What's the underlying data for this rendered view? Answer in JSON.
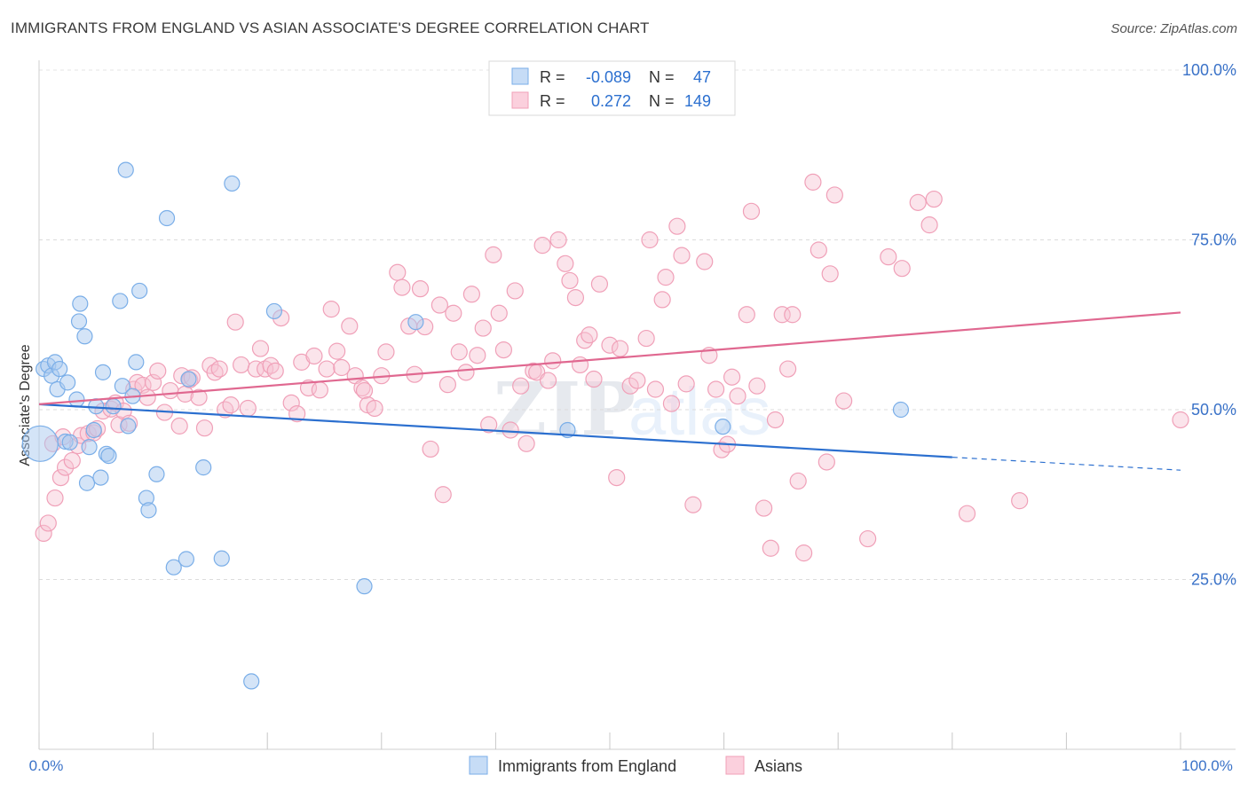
{
  "header": {
    "title": "IMMIGRANTS FROM ENGLAND VS ASIAN ASSOCIATE'S DEGREE CORRELATION CHART",
    "source": "Source: ZipAtlas.com"
  },
  "stats": {
    "row1": {
      "r_label": "R =",
      "r_value": "-0.089",
      "n_label": "N =",
      "n_value": "47"
    },
    "row2": {
      "r_label": "R =",
      "r_value": "0.272",
      "n_label": "N =",
      "n_value": "149"
    }
  },
  "watermark": {
    "zip": "ZIP",
    "atlas": "atlas"
  },
  "colors": {
    "blue": "#7aaee8",
    "blue_line": "#2b6fcf",
    "pink": "#f0a0b8",
    "pink_line": "#e06890",
    "tick_text": "#3a72c8"
  },
  "chart_data": {
    "type": "scatter",
    "title": "IMMIGRANTS FROM ENGLAND VS ASIAN ASSOCIATE'S DEGREE CORRELATION CHART",
    "xlabel": "",
    "ylabel": "Associate's Degree",
    "xlim": [
      0,
      100
    ],
    "ylim": [
      0,
      100
    ],
    "x_tick_labels": [
      "0.0%",
      "100.0%"
    ],
    "y_tick_labels": [
      "25.0%",
      "50.0%",
      "75.0%",
      "100.0%"
    ],
    "y_ticks": [
      25,
      50,
      75,
      100
    ],
    "grid": true,
    "legend_position": "bottom",
    "series": [
      {
        "name": "Immigrants from England",
        "color": "#7aaee8",
        "r": -0.089,
        "n": 47,
        "trend": {
          "x": [
            0,
            80
          ],
          "y": [
            50.8,
            43.0
          ],
          "dashed_to": [
            100,
            41.1
          ]
        },
        "points": [
          [
            0.1,
            45.0
          ],
          [
            0.4,
            56.0
          ],
          [
            0.8,
            56.5
          ],
          [
            1.1,
            55.0
          ],
          [
            1.4,
            57.0
          ],
          [
            1.6,
            53.0
          ],
          [
            1.8,
            56.0
          ],
          [
            2.3,
            45.3
          ],
          [
            2.5,
            54.0
          ],
          [
            2.7,
            45.2
          ],
          [
            3.3,
            51.5
          ],
          [
            3.5,
            63.0
          ],
          [
            3.6,
            65.6
          ],
          [
            4.0,
            60.8
          ],
          [
            4.2,
            39.2
          ],
          [
            4.4,
            44.5
          ],
          [
            4.8,
            47.0
          ],
          [
            5.0,
            50.5
          ],
          [
            5.4,
            40.0
          ],
          [
            5.6,
            55.5
          ],
          [
            5.9,
            43.5
          ],
          [
            6.1,
            43.2
          ],
          [
            6.5,
            50.5
          ],
          [
            7.1,
            66.0
          ],
          [
            7.3,
            53.5
          ],
          [
            7.6,
            85.3
          ],
          [
            7.8,
            47.6
          ],
          [
            8.2,
            52.0
          ],
          [
            8.5,
            57.0
          ],
          [
            8.8,
            67.5
          ],
          [
            9.4,
            37.0
          ],
          [
            9.6,
            35.2
          ],
          [
            10.3,
            40.5
          ],
          [
            11.2,
            78.2
          ],
          [
            11.8,
            26.8
          ],
          [
            12.9,
            28.0
          ],
          [
            13.1,
            54.5
          ],
          [
            14.4,
            41.5
          ],
          [
            16.0,
            28.1
          ],
          [
            16.9,
            83.3
          ],
          [
            18.6,
            10.0
          ],
          [
            20.6,
            64.5
          ],
          [
            28.5,
            24.0
          ],
          [
            33.0,
            62.9
          ],
          [
            46.3,
            47.0
          ],
          [
            59.9,
            47.5
          ],
          [
            75.5,
            50.0
          ]
        ]
      },
      {
        "name": "Asians",
        "color": "#f0a0b8",
        "r": 0.272,
        "n": 149,
        "trend": {
          "x": [
            0,
            100
          ],
          "y": [
            50.8,
            64.3
          ]
        },
        "points": [
          [
            0.4,
            31.8
          ],
          [
            0.8,
            33.3
          ],
          [
            1.2,
            45.0
          ],
          [
            1.4,
            37.0
          ],
          [
            1.9,
            40.0
          ],
          [
            2.1,
            46.0
          ],
          [
            2.3,
            41.5
          ],
          [
            2.9,
            42.5
          ],
          [
            3.4,
            44.7
          ],
          [
            3.7,
            46.2
          ],
          [
            4.3,
            46.5
          ],
          [
            4.8,
            46.6
          ],
          [
            5.1,
            47.2
          ],
          [
            5.6,
            49.8
          ],
          [
            6.3,
            50.1
          ],
          [
            6.7,
            51.0
          ],
          [
            7.0,
            47.8
          ],
          [
            7.4,
            49.8
          ],
          [
            7.9,
            48.0
          ],
          [
            8.3,
            53.0
          ],
          [
            8.6,
            54.0
          ],
          [
            9.1,
            53.6
          ],
          [
            9.5,
            51.8
          ],
          [
            10.0,
            54.0
          ],
          [
            10.4,
            55.7
          ],
          [
            11.0,
            49.6
          ],
          [
            11.5,
            52.8
          ],
          [
            12.3,
            47.6
          ],
          [
            12.5,
            55.0
          ],
          [
            12.8,
            52.3
          ],
          [
            13.2,
            54.4
          ],
          [
            13.4,
            54.7
          ],
          [
            14.0,
            51.8
          ],
          [
            14.5,
            47.3
          ],
          [
            15.0,
            56.5
          ],
          [
            15.4,
            55.5
          ],
          [
            15.8,
            56.0
          ],
          [
            16.3,
            50.0
          ],
          [
            16.8,
            50.7
          ],
          [
            17.2,
            62.9
          ],
          [
            17.7,
            56.6
          ],
          [
            18.3,
            50.2
          ],
          [
            19.0,
            56.0
          ],
          [
            19.4,
            59.0
          ],
          [
            19.8,
            56.0
          ],
          [
            20.3,
            56.5
          ],
          [
            20.7,
            55.7
          ],
          [
            21.2,
            63.5
          ],
          [
            22.1,
            51.0
          ],
          [
            22.6,
            49.4
          ],
          [
            23.0,
            57.0
          ],
          [
            23.6,
            53.2
          ],
          [
            24.1,
            57.9
          ],
          [
            24.6,
            52.9
          ],
          [
            25.2,
            56.0
          ],
          [
            25.6,
            64.8
          ],
          [
            26.1,
            58.6
          ],
          [
            26.5,
            56.2
          ],
          [
            27.2,
            62.3
          ],
          [
            27.7,
            55.0
          ],
          [
            28.3,
            53.2
          ],
          [
            28.5,
            52.8
          ],
          [
            28.8,
            50.7
          ],
          [
            29.4,
            50.2
          ],
          [
            30.0,
            55.0
          ],
          [
            30.4,
            58.5
          ],
          [
            31.4,
            70.2
          ],
          [
            31.8,
            68.0
          ],
          [
            32.4,
            62.3
          ],
          [
            32.9,
            55.2
          ],
          [
            33.4,
            67.8
          ],
          [
            33.8,
            62.2
          ],
          [
            34.3,
            44.2
          ],
          [
            35.1,
            65.4
          ],
          [
            35.4,
            37.5
          ],
          [
            35.8,
            53.7
          ],
          [
            36.3,
            64.2
          ],
          [
            36.8,
            58.5
          ],
          [
            37.4,
            55.5
          ],
          [
            37.9,
            67.0
          ],
          [
            38.4,
            58.0
          ],
          [
            38.9,
            62.0
          ],
          [
            39.4,
            47.8
          ],
          [
            39.8,
            72.8
          ],
          [
            40.3,
            64.2
          ],
          [
            40.7,
            58.8
          ],
          [
            41.3,
            47.0
          ],
          [
            41.7,
            67.5
          ],
          [
            42.2,
            53.5
          ],
          [
            42.7,
            45.0
          ],
          [
            43.3,
            55.7
          ],
          [
            43.6,
            55.5
          ],
          [
            44.1,
            74.2
          ],
          [
            44.6,
            54.3
          ],
          [
            45.0,
            57.2
          ],
          [
            45.5,
            75.0
          ],
          [
            46.1,
            71.5
          ],
          [
            46.5,
            69.0
          ],
          [
            47.0,
            66.5
          ],
          [
            47.4,
            56.6
          ],
          [
            47.8,
            60.2
          ],
          [
            48.2,
            61.0
          ],
          [
            48.6,
            54.5
          ],
          [
            49.1,
            68.5
          ],
          [
            50.0,
            59.5
          ],
          [
            50.6,
            40.0
          ],
          [
            50.9,
            59.0
          ],
          [
            51.8,
            53.5
          ],
          [
            52.4,
            54.3
          ],
          [
            53.2,
            60.5
          ],
          [
            53.5,
            75.0
          ],
          [
            54.0,
            53.0
          ],
          [
            54.6,
            66.2
          ],
          [
            54.9,
            69.5
          ],
          [
            55.4,
            50.9
          ],
          [
            55.9,
            77.0
          ],
          [
            56.3,
            72.7
          ],
          [
            56.7,
            53.8
          ],
          [
            57.3,
            36.0
          ],
          [
            58.3,
            71.8
          ],
          [
            58.7,
            58.0
          ],
          [
            59.3,
            53.0
          ],
          [
            59.8,
            44.1
          ],
          [
            60.3,
            44.9
          ],
          [
            60.7,
            54.8
          ],
          [
            61.2,
            52.0
          ],
          [
            62.0,
            64.0
          ],
          [
            62.4,
            79.2
          ],
          [
            62.9,
            53.5
          ],
          [
            63.5,
            35.5
          ],
          [
            64.1,
            29.6
          ],
          [
            64.5,
            48.5
          ],
          [
            65.1,
            64.0
          ],
          [
            65.6,
            56.0
          ],
          [
            66.0,
            64.0
          ],
          [
            66.5,
            39.5
          ],
          [
            67.0,
            28.9
          ],
          [
            67.8,
            83.5
          ],
          [
            68.3,
            73.5
          ],
          [
            69.0,
            42.3
          ],
          [
            69.3,
            70.0
          ],
          [
            69.7,
            81.6
          ],
          [
            70.5,
            51.3
          ],
          [
            72.6,
            31.0
          ],
          [
            74.4,
            72.5
          ],
          [
            75.6,
            70.8
          ],
          [
            77.0,
            80.5
          ],
          [
            78.0,
            77.2
          ],
          [
            78.4,
            81.0
          ],
          [
            81.3,
            34.7
          ],
          [
            85.9,
            36.6
          ],
          [
            100.0,
            48.5
          ]
        ]
      }
    ]
  },
  "legend": {
    "item1": "Immigrants from England",
    "item2": "Asians"
  }
}
